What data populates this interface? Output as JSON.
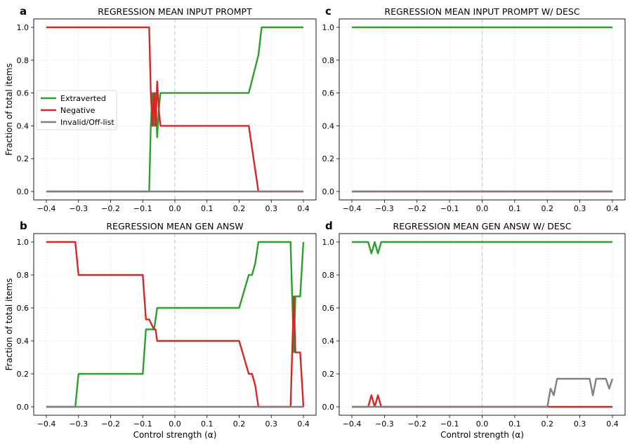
{
  "legend": {
    "series": [
      {
        "name": "Extraverted",
        "color": "#2ca02c"
      },
      {
        "name": "Negative",
        "color": "#d62728"
      },
      {
        "name": "Invalid/Off-list",
        "color": "#808080"
      }
    ],
    "location": "center-left",
    "panel": "a"
  },
  "chart_data": [
    {
      "panel": "a",
      "type": "line",
      "title": "REGRESSION MEAN INPUT PROMPT",
      "xlabel": "",
      "ylabel": "Fraction of total items",
      "xlim": [
        -0.4,
        0.4
      ],
      "ylim": [
        0.0,
        1.0
      ],
      "xticks": [
        "−0.4",
        "−0.3",
        "−0.2",
        "−0.1",
        "0.0",
        "0.1",
        "0.2",
        "0.3",
        "0.4"
      ],
      "yticks": [
        "0.0",
        "0.2",
        "0.4",
        "0.6",
        "0.8",
        "1.0"
      ],
      "grid": true,
      "reference_line_x": 0.0,
      "series": [
        {
          "name": "Extraverted",
          "color": "#2ca02c",
          "x": [
            -0.4,
            -0.08,
            -0.075,
            -0.07,
            -0.065,
            -0.06,
            -0.055,
            -0.05,
            -0.045,
            0.0,
            0.1,
            0.2,
            0.23,
            0.26,
            0.27,
            0.3,
            0.35,
            0.4
          ],
          "y": [
            0.0,
            0.0,
            0.4,
            0.6,
            0.4,
            0.6,
            0.33,
            0.5,
            0.6,
            0.6,
            0.6,
            0.6,
            0.6,
            0.83,
            1.0,
            1.0,
            1.0,
            1.0
          ]
        },
        {
          "name": "Negative",
          "color": "#d62728",
          "x": [
            -0.4,
            -0.08,
            -0.075,
            -0.07,
            -0.065,
            -0.06,
            -0.055,
            -0.05,
            -0.045,
            0.0,
            0.1,
            0.2,
            0.23,
            0.26,
            0.3,
            0.4
          ],
          "y": [
            1.0,
            1.0,
            0.6,
            0.4,
            0.6,
            0.4,
            0.67,
            0.5,
            0.4,
            0.4,
            0.4,
            0.4,
            0.4,
            0.0,
            0.0,
            0.0
          ]
        },
        {
          "name": "Invalid/Off-list",
          "color": "#808080",
          "x": [
            -0.4,
            0.4
          ],
          "y": [
            0.0,
            0.0
          ]
        }
      ]
    },
    {
      "panel": "c",
      "type": "line",
      "title": "REGRESSION MEAN INPUT PROMPT W/ DESC",
      "xlabel": "",
      "ylabel": "",
      "xlim": [
        -0.4,
        0.4
      ],
      "ylim": [
        0.0,
        1.0
      ],
      "xticks": [
        "−0.4",
        "−0.3",
        "−0.2",
        "−0.1",
        "0.0",
        "0.1",
        "0.2",
        "0.3",
        "0.4"
      ],
      "yticks": [
        "0.0",
        "0.2",
        "0.4",
        "0.6",
        "0.8",
        "1.0"
      ],
      "grid": true,
      "reference_line_x": 0.0,
      "series": [
        {
          "name": "Extraverted",
          "color": "#2ca02c",
          "x": [
            -0.4,
            0.4
          ],
          "y": [
            1.0,
            1.0
          ]
        },
        {
          "name": "Negative",
          "color": "#d62728",
          "x": [
            -0.4,
            0.4
          ],
          "y": [
            0.0,
            0.0
          ]
        },
        {
          "name": "Invalid/Off-list",
          "color": "#808080",
          "x": [
            -0.4,
            0.4
          ],
          "y": [
            0.0,
            0.0
          ]
        }
      ]
    },
    {
      "panel": "b",
      "type": "line",
      "title": "REGRESSION MEAN GEN ANSW",
      "xlabel": "Control strength (α)",
      "ylabel": "Fraction of total items",
      "xlim": [
        -0.4,
        0.4
      ],
      "ylim": [
        0.0,
        1.0
      ],
      "xticks": [
        "−0.4",
        "−0.3",
        "−0.2",
        "−0.1",
        "0.0",
        "0.1",
        "0.2",
        "0.3",
        "0.4"
      ],
      "yticks": [
        "0.0",
        "0.2",
        "0.4",
        "0.6",
        "0.8",
        "1.0"
      ],
      "grid": true,
      "reference_line_x": 0.0,
      "series": [
        {
          "name": "Extraverted",
          "color": "#2ca02c",
          "x": [
            -0.4,
            -0.31,
            -0.3,
            -0.2,
            -0.1,
            -0.09,
            -0.08,
            -0.065,
            -0.06,
            -0.055,
            0.0,
            0.1,
            0.2,
            0.23,
            0.24,
            0.25,
            0.26,
            0.27,
            0.36,
            0.365,
            0.37,
            0.375,
            0.38,
            0.39,
            0.4
          ],
          "y": [
            0.0,
            0.0,
            0.2,
            0.2,
            0.2,
            0.47,
            0.47,
            0.47,
            0.53,
            0.6,
            0.6,
            0.6,
            0.6,
            0.8,
            0.8,
            0.87,
            1.0,
            1.0,
            1.0,
            0.67,
            0.33,
            0.67,
            0.67,
            0.67,
            1.0
          ]
        },
        {
          "name": "Negative",
          "color": "#d62728",
          "x": [
            -0.4,
            -0.31,
            -0.3,
            -0.2,
            -0.1,
            -0.09,
            -0.08,
            -0.065,
            -0.06,
            -0.055,
            0.0,
            0.1,
            0.2,
            0.23,
            0.24,
            0.25,
            0.26,
            0.27,
            0.36,
            0.365,
            0.37,
            0.375,
            0.38,
            0.39,
            0.4
          ],
          "y": [
            1.0,
            1.0,
            0.8,
            0.8,
            0.8,
            0.53,
            0.53,
            0.47,
            0.47,
            0.4,
            0.4,
            0.4,
            0.4,
            0.2,
            0.2,
            0.13,
            0.0,
            0.0,
            0.0,
            0.33,
            0.67,
            0.33,
            0.33,
            0.33,
            0.0
          ]
        },
        {
          "name": "Invalid/Off-list",
          "color": "#808080",
          "x": [
            -0.4,
            0.4
          ],
          "y": [
            0.0,
            0.0
          ]
        }
      ]
    },
    {
      "panel": "d",
      "type": "line",
      "title": "REGRESSION MEAN GEN ANSW W/ DESC",
      "xlabel": "Control strength (α)",
      "ylabel": "",
      "xlim": [
        -0.4,
        0.4
      ],
      "ylim": [
        0.0,
        1.0
      ],
      "xticks": [
        "−0.4",
        "−0.3",
        "−0.2",
        "−0.1",
        "0.0",
        "0.1",
        "0.2",
        "0.3",
        "0.4"
      ],
      "yticks": [
        "0.0",
        "0.2",
        "0.4",
        "0.6",
        "0.8",
        "1.0"
      ],
      "grid": true,
      "reference_line_x": 0.0,
      "series": [
        {
          "name": "Extraverted",
          "color": "#2ca02c",
          "x": [
            -0.4,
            -0.35,
            -0.34,
            -0.33,
            -0.32,
            -0.31,
            0.0,
            0.4
          ],
          "y": [
            1.0,
            1.0,
            0.93,
            1.0,
            0.93,
            1.0,
            1.0,
            1.0
          ]
        },
        {
          "name": "Negative",
          "color": "#d62728",
          "x": [
            -0.4,
            -0.35,
            -0.34,
            -0.33,
            -0.32,
            -0.31,
            0.0,
            0.4
          ],
          "y": [
            0.0,
            0.0,
            0.07,
            0.0,
            0.07,
            0.0,
            0.0,
            0.0
          ]
        },
        {
          "name": "Invalid/Off-list",
          "color": "#808080",
          "x": [
            -0.4,
            0.2,
            0.21,
            0.22,
            0.23,
            0.3,
            0.33,
            0.34,
            0.35,
            0.38,
            0.39,
            0.4
          ],
          "y": [
            0.0,
            0.0,
            0.11,
            0.07,
            0.17,
            0.17,
            0.17,
            0.07,
            0.17,
            0.17,
            0.11,
            0.17
          ]
        }
      ]
    }
  ]
}
